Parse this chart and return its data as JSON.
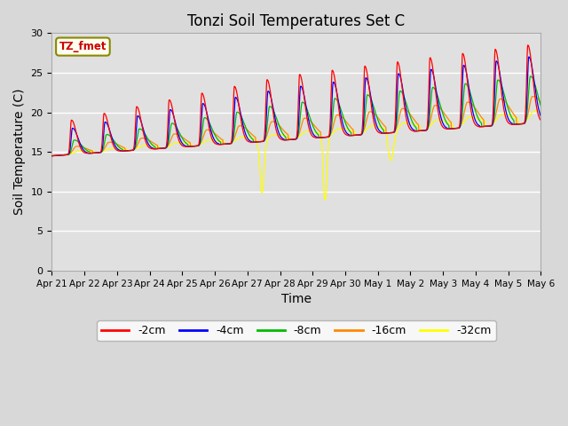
{
  "title": "Tonzi Soil Temperatures Set C",
  "xlabel": "Time",
  "ylabel": "Soil Temperature (C)",
  "ylim": [
    0,
    30
  ],
  "colors": {
    "-2cm": "#ff0000",
    "-4cm": "#0000ff",
    "-8cm": "#00bb00",
    "-16cm": "#ff8800",
    "-32cm": "#ffff00"
  },
  "tick_labels": [
    "Apr 21",
    "Apr 22",
    "Apr 23",
    "Apr 24",
    "Apr 25",
    "Apr 26",
    "Apr 27",
    "Apr 28",
    "Apr 29",
    "Apr 30",
    "May 1",
    "May 2",
    "May 3",
    "May 4",
    "May 5",
    "May 6"
  ],
  "fig_facecolor": "#d8d8d8",
  "plot_facecolor": "#e0e0e0",
  "title_fontsize": 12,
  "axis_label_fontsize": 10
}
